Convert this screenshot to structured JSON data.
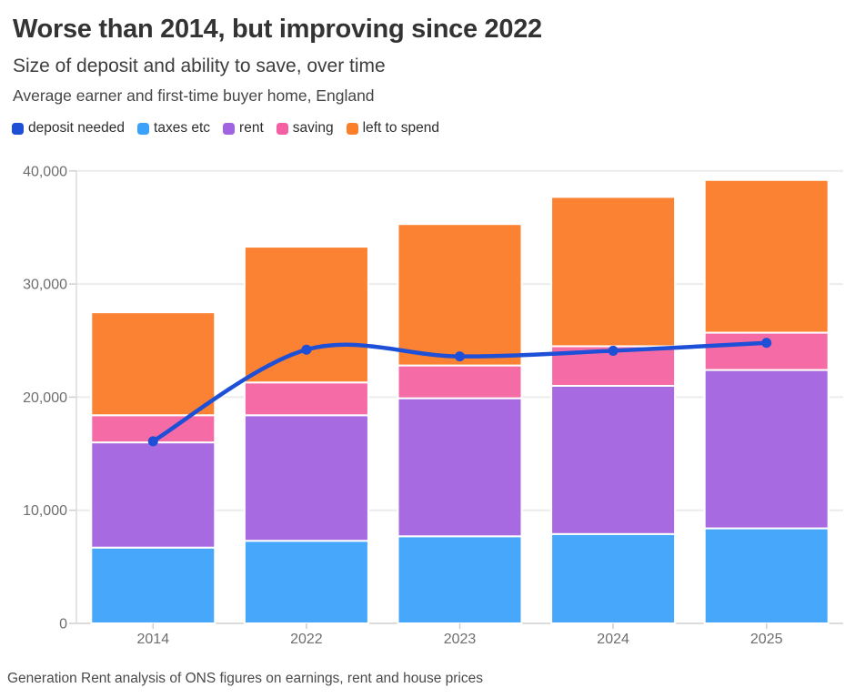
{
  "header": {
    "title": "Worse than 2014, but improving since 2022",
    "subtitle": "Size of deposit and ability to save, over time",
    "context": "Average earner and first-time buyer home, England"
  },
  "legend": {
    "items": [
      {
        "label": "deposit needed",
        "color": "#1e50d6"
      },
      {
        "label": "taxes etc",
        "color": "#3ba2fb"
      },
      {
        "label": "rent",
        "color": "#a263e0"
      },
      {
        "label": "saving",
        "color": "#f45ea2"
      },
      {
        "label": "left to spend",
        "color": "#f98029"
      }
    ]
  },
  "chart_data": {
    "type": "bar",
    "subtype": "stacked-bar-with-line-overlay",
    "categories": [
      "2014",
      "2022",
      "2023",
      "2024",
      "2025"
    ],
    "stack_series": [
      {
        "name": "taxes etc",
        "color": "#47a7fb",
        "values": [
          6700,
          7300,
          7700,
          7900,
          8400
        ]
      },
      {
        "name": "rent",
        "color": "#a76ae0",
        "values": [
          9300,
          11100,
          12200,
          13100,
          14000
        ]
      },
      {
        "name": "saving",
        "color": "#f56ba5",
        "values": [
          2400,
          2900,
          2900,
          3500,
          3300
        ]
      },
      {
        "name": "left to spend",
        "color": "#fa8232",
        "values": [
          9100,
          12000,
          12500,
          13200,
          13500
        ]
      }
    ],
    "line_series": {
      "name": "deposit needed",
      "color": "#1d4fd7",
      "values": [
        16100,
        24200,
        23600,
        24100,
        24800
      ]
    },
    "bar_totals": [
      27500,
      33300,
      35300,
      37700,
      39200
    ],
    "title": "Size of deposit and ability to save, over time",
    "xlabel": "",
    "ylabel": "",
    "ylim": [
      0,
      40000
    ],
    "yticks": [
      0,
      10000,
      20000,
      30000,
      40000
    ],
    "ytick_labels": [
      "0",
      "10,000",
      "20,000",
      "30,000",
      "40,000"
    ],
    "grid": "horizontal",
    "legend_position": "top"
  },
  "footer": {
    "source": "Generation Rent analysis of ONS figures on earnings, rent and house prices"
  }
}
